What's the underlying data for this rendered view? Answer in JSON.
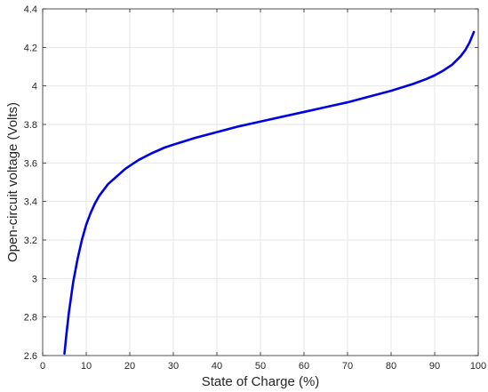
{
  "chart_data": {
    "type": "line",
    "title": "",
    "xlabel": "State of Charge (%)",
    "ylabel": "Open-circuit voltage (Volts)",
    "xlim": [
      0,
      100
    ],
    "ylim": [
      2.6,
      4.4
    ],
    "xticks": [
      0,
      10,
      20,
      30,
      40,
      50,
      60,
      70,
      80,
      90,
      100
    ],
    "xtick_labels": [
      "0",
      "10",
      "20",
      "30",
      "40",
      "50",
      "60",
      "70",
      "80",
      "90",
      "100"
    ],
    "yticks": [
      2.6,
      2.8,
      3.0,
      3.2,
      3.4,
      3.6,
      3.8,
      4.0,
      4.2,
      4.4
    ],
    "ytick_labels": [
      "2.6",
      "2.8",
      "3",
      "3.2",
      "3.4",
      "3.6",
      "3.8",
      "4",
      "4.2",
      "4.4"
    ],
    "grid": true,
    "legend": "none",
    "line_color": "#0000e6",
    "series": [
      {
        "x": [
          5,
          5.5,
          6,
          6.5,
          7,
          8,
          9,
          10,
          11,
          12,
          13,
          14,
          15,
          17,
          19,
          20,
          22,
          25,
          28,
          30,
          35,
          40,
          45,
          50,
          55,
          60,
          65,
          70,
          75,
          80,
          85,
          88,
          90,
          92,
          94,
          96,
          97,
          98,
          99
        ],
        "y": [
          2.61,
          2.72,
          2.82,
          2.9,
          2.98,
          3.1,
          3.2,
          3.28,
          3.34,
          3.39,
          3.43,
          3.46,
          3.49,
          3.53,
          3.57,
          3.585,
          3.615,
          3.65,
          3.68,
          3.695,
          3.73,
          3.76,
          3.79,
          3.815,
          3.84,
          3.865,
          3.89,
          3.915,
          3.945,
          3.975,
          4.01,
          4.035,
          4.055,
          4.08,
          4.11,
          4.155,
          4.185,
          4.225,
          4.28
        ]
      }
    ]
  }
}
